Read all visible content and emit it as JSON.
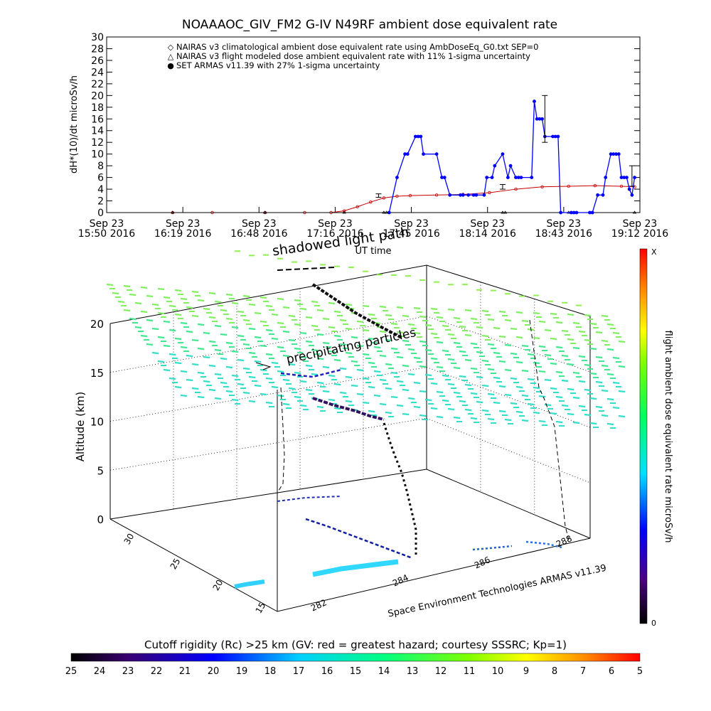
{
  "chart_data": [
    {
      "type": "line",
      "title": "NOAAAOC_GIV_FM2 G-IV    N49RF  ambient dose equivalent rate",
      "xlabel": "UT time",
      "ylabel": "dH*(10)/dt microSv/h",
      "ylim": [
        0,
        30
      ],
      "yticks": [
        "0",
        "2",
        "4",
        "6",
        "8",
        "10",
        "12",
        "14",
        "16",
        "18",
        "20",
        "22",
        "24",
        "26",
        "28",
        "30"
      ],
      "xlim_minutes": [
        0,
        202
      ],
      "xticks": [
        {
          "top": "Sep 23",
          "bottom": "15:50 2016"
        },
        {
          "top": "Sep 23",
          "bottom": "16:19 2016"
        },
        {
          "top": "Sep 23",
          "bottom": "16:48 2016"
        },
        {
          "top": "Sep 23",
          "bottom": "17:16 2016"
        },
        {
          "top": "Sep 23",
          "bottom": "17:45 2016"
        },
        {
          "top": "Sep 23",
          "bottom": "18:14 2016"
        },
        {
          "top": "Sep 23",
          "bottom": "18:43 2016"
        },
        {
          "top": "Sep 23",
          "bottom": "19:12 2016"
        }
      ],
      "legend": [
        {
          "marker": "◇",
          "name": "NAIRAS v3 climatological ambient dose equivalent rate using AmbDoseEq_G0.txt SEP=0",
          "color": "#c80000"
        },
        {
          "marker": "△",
          "name": "NAIRAS v3 flight modeled dose ambient equivalent rate with 11% 1-sigma uncertainty",
          "color": "#000000"
        },
        {
          "marker": "●",
          "name": "SET ARMAS v11.39 with 27% 1-sigma uncertainty",
          "color": "#0000ff"
        }
      ],
      "legend_position": "top",
      "series": [
        {
          "color": "#c80000",
          "x": [
            25,
            40,
            60,
            75,
            85,
            90,
            95,
            100,
            105,
            110,
            115,
            125,
            135,
            145,
            155,
            165,
            175,
            185,
            195,
            200
          ],
          "y": [
            0,
            0,
            0,
            0,
            0,
            0.3,
            1.0,
            1.8,
            2.5,
            2.8,
            2.9,
            3.0,
            3.1,
            3.4,
            4.0,
            4.4,
            4.5,
            4.6,
            4.5,
            4.4
          ]
        },
        {
          "color": "#000000",
          "x": [
            25,
            60,
            90,
            105,
            106,
            150,
            151,
            175,
            176,
            200
          ],
          "y": [
            0,
            0,
            0,
            0,
            0,
            0,
            0,
            0,
            0,
            0
          ]
        },
        {
          "color": "#0000ff",
          "x": [
            107,
            110,
            113,
            114,
            117,
            118,
            119,
            120,
            125,
            127,
            128,
            130,
            134,
            135,
            137,
            139,
            140,
            143,
            144,
            146,
            147,
            150,
            152,
            153,
            155,
            156,
            157,
            161,
            162,
            163,
            164,
            165,
            166,
            169,
            170,
            171,
            172,
            176,
            177,
            178,
            183,
            184,
            186,
            188,
            189,
            191,
            192,
            193,
            194,
            195,
            196,
            197,
            198,
            199,
            200
          ],
          "y": [
            0,
            6,
            10,
            10,
            13,
            13,
            13,
            10,
            10,
            6,
            6,
            3,
            3,
            3,
            3,
            3,
            3,
            3,
            6,
            6,
            8,
            10,
            6,
            8,
            6,
            6,
            6,
            6,
            19,
            16,
            16,
            16,
            13,
            13,
            13,
            13,
            0,
            0,
            0,
            0,
            0,
            0,
            3,
            3,
            6,
            10,
            10,
            10,
            10,
            6,
            6,
            6,
            4,
            3,
            6
          ]
        }
      ],
      "error_bars": [
        {
          "x": 103,
          "y": 2.9,
          "lo": 2.6,
          "hi": 3.2
        },
        {
          "x": 150,
          "y": 4.4,
          "lo": 4.0,
          "hi": 4.8
        },
        {
          "x": 166,
          "y": 16,
          "lo": 12,
          "hi": 20
        },
        {
          "x": 199,
          "y": 6,
          "lo": 4.5,
          "hi": 8
        }
      ]
    },
    {
      "type": "scatter",
      "title": "shadowed light path",
      "zlabel": "Altitude (km)",
      "zlim": [
        0,
        20
      ],
      "zticks": [
        "0",
        "5",
        "10",
        "15",
        "20"
      ],
      "lat_ticks": [
        "15",
        "20",
        "25",
        "30"
      ],
      "lon_ticks": [
        "282",
        "284",
        "286",
        "288"
      ],
      "annotations": [
        "precipitating particles",
        "Space Environment Technologies ARMAS v11.39"
      ],
      "colorbar": {
        "label": "flight ambient dose equivalent rate microSv/h",
        "min_label": "0",
        "max_label": "X"
      }
    },
    {
      "type": "heatmap",
      "title": "Cutoff rigidity (Rc) >25 km (GV: red = greatest hazard; courtesy SSSRC; Kp=1)",
      "ticks": [
        "25",
        "24",
        "23",
        "22",
        "21",
        "20",
        "19",
        "18",
        "17",
        "16",
        "15",
        "14",
        "13",
        "12",
        "11",
        "10",
        "9",
        "8",
        "7",
        "6",
        "5"
      ]
    }
  ]
}
